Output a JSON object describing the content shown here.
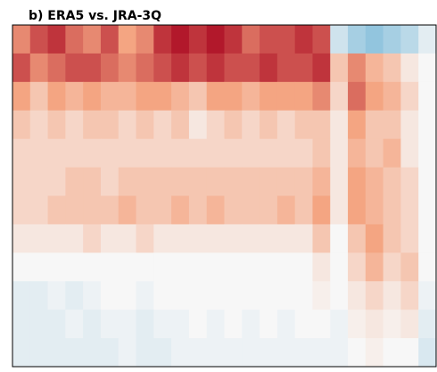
{
  "chart_data": {
    "type": "heatmap",
    "title": "b) ERA5 vs. JRA-3Q",
    "zlim": [
      -1,
      1
    ],
    "colors": [
      "#2166ac",
      "#92c5de",
      "#f7f7f7",
      "#f4a582",
      "#b2182b"
    ],
    "values": [
      [
        0.6,
        0.8,
        0.9,
        0.7,
        0.6,
        0.8,
        0.5,
        0.6,
        0.9,
        1.0,
        0.9,
        1.0,
        0.9,
        0.7,
        0.8,
        0.8,
        0.9,
        0.8,
        -0.2,
        -0.4,
        -0.5,
        -0.4,
        -0.3,
        -0.1
      ],
      [
        0.8,
        0.6,
        0.7,
        0.8,
        0.8,
        0.7,
        0.6,
        0.7,
        0.8,
        0.9,
        0.8,
        0.9,
        0.8,
        0.8,
        0.9,
        0.8,
        0.8,
        0.9,
        0.3,
        0.6,
        0.4,
        0.3,
        0.1,
        0.0
      ],
      [
        0.5,
        0.3,
        0.5,
        0.4,
        0.5,
        0.4,
        0.4,
        0.5,
        0.5,
        0.4,
        0.3,
        0.5,
        0.5,
        0.4,
        0.5,
        0.5,
        0.5,
        0.6,
        0.2,
        0.7,
        0.5,
        0.4,
        0.2,
        0.0
      ],
      [
        0.3,
        0.2,
        0.3,
        0.2,
        0.3,
        0.3,
        0.2,
        0.3,
        0.2,
        0.3,
        0.1,
        0.2,
        0.3,
        0.2,
        0.3,
        0.2,
        0.3,
        0.3,
        0.1,
        0.5,
        0.3,
        0.3,
        0.1,
        0.0
      ],
      [
        0.2,
        0.2,
        0.2,
        0.2,
        0.2,
        0.2,
        0.2,
        0.2,
        0.2,
        0.2,
        0.2,
        0.2,
        0.2,
        0.2,
        0.2,
        0.2,
        0.2,
        0.3,
        0.1,
        0.4,
        0.3,
        0.4,
        0.1,
        0.0
      ],
      [
        0.2,
        0.2,
        0.2,
        0.3,
        0.3,
        0.2,
        0.3,
        0.3,
        0.3,
        0.3,
        0.3,
        0.3,
        0.3,
        0.3,
        0.3,
        0.3,
        0.3,
        0.4,
        0.1,
        0.5,
        0.4,
        0.3,
        0.2,
        0.0
      ],
      [
        0.2,
        0.2,
        0.3,
        0.3,
        0.3,
        0.3,
        0.4,
        0.3,
        0.3,
        0.4,
        0.3,
        0.4,
        0.3,
        0.3,
        0.3,
        0.4,
        0.3,
        0.5,
        0.1,
        0.5,
        0.4,
        0.3,
        0.2,
        0.0
      ],
      [
        0.1,
        0.1,
        0.1,
        0.1,
        0.2,
        0.1,
        0.1,
        0.2,
        0.1,
        0.1,
        0.1,
        0.1,
        0.1,
        0.1,
        0.1,
        0.1,
        0.1,
        0.3,
        0.0,
        0.3,
        0.5,
        0.3,
        0.2,
        0.0
      ],
      [
        0.0,
        0.0,
        0.0,
        0.0,
        0.0,
        0.0,
        0.0,
        0.0,
        0.0,
        0.0,
        0.0,
        0.0,
        0.0,
        0.0,
        0.0,
        0.0,
        0.0,
        0.1,
        0.0,
        0.2,
        0.4,
        0.2,
        0.3,
        0.0
      ],
      [
        -0.1,
        -0.1,
        -0.05,
        -0.1,
        -0.05,
        0.0,
        0.0,
        -0.05,
        0.0,
        0.0,
        0.0,
        0.0,
        0.0,
        0.0,
        0.0,
        0.0,
        0.0,
        0.05,
        0.0,
        0.1,
        0.2,
        0.1,
        0.2,
        -0.05
      ],
      [
        -0.1,
        -0.1,
        -0.1,
        -0.05,
        -0.1,
        -0.05,
        -0.05,
        -0.1,
        -0.05,
        -0.05,
        0.0,
        -0.05,
        0.0,
        -0.05,
        0.0,
        -0.05,
        0.0,
        0.0,
        -0.05,
        0.05,
        0.1,
        0.05,
        0.1,
        -0.1
      ],
      [
        -0.1,
        -0.1,
        -0.1,
        -0.1,
        -0.1,
        -0.1,
        -0.05,
        -0.1,
        -0.1,
        -0.05,
        -0.05,
        -0.05,
        -0.05,
        -0.05,
        -0.05,
        -0.05,
        -0.05,
        -0.05,
        -0.05,
        0.0,
        0.05,
        0.0,
        0.0,
        -0.15
      ]
    ]
  }
}
